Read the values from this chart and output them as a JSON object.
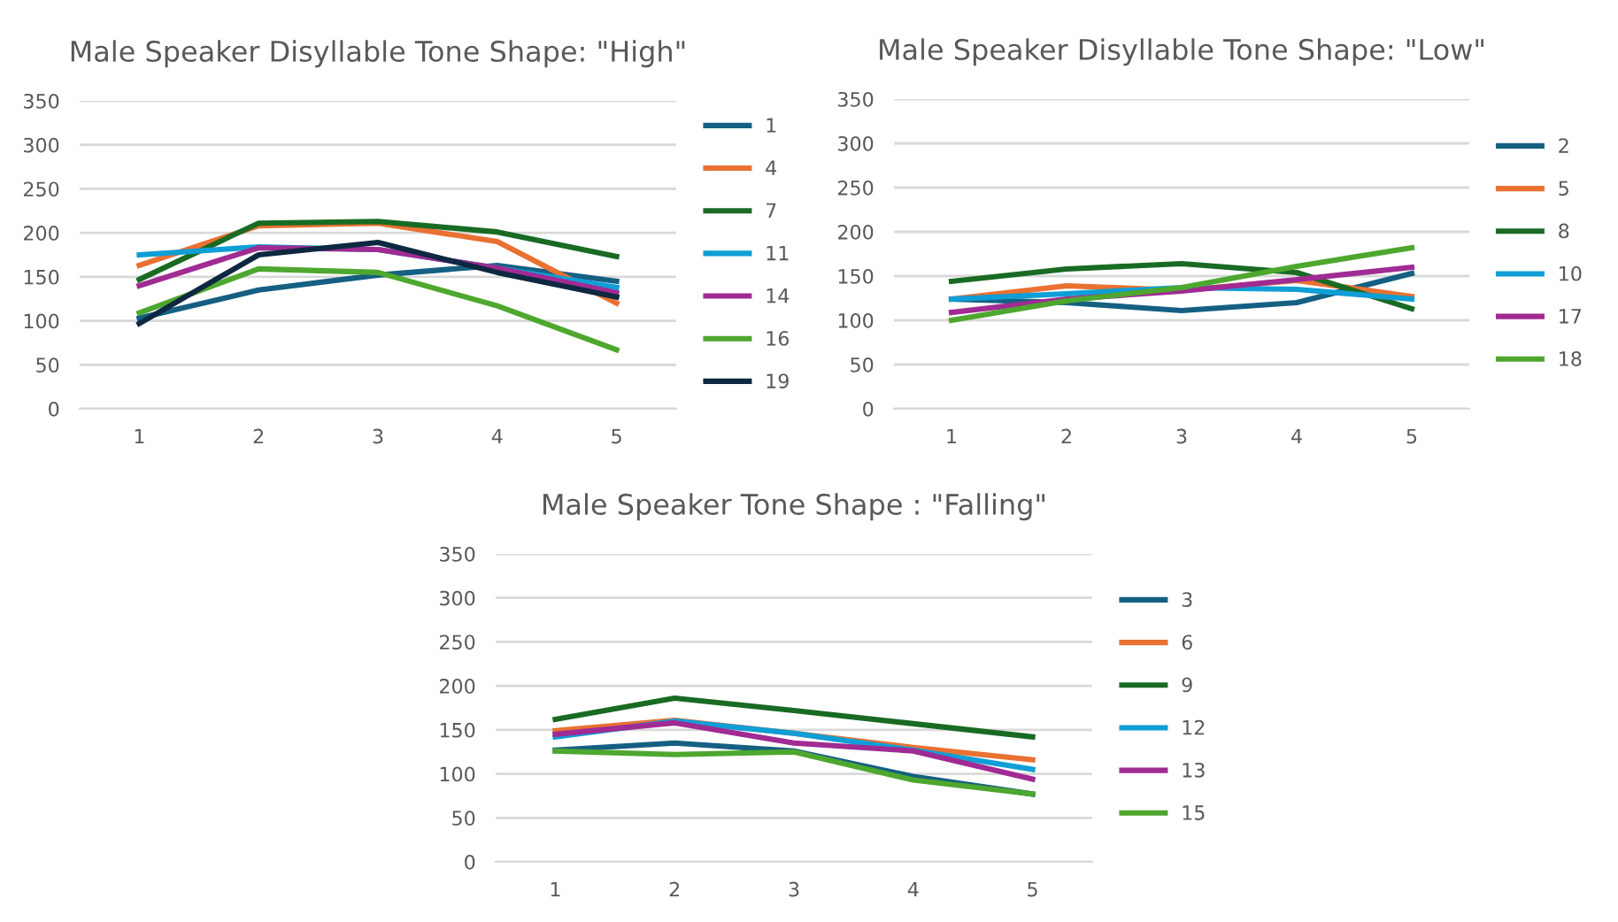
{
  "chart_data": [
    {
      "type": "line",
      "title": "Male Speaker Disyllable Tone Shape: \"High\"",
      "categories": [
        "1",
        "2",
        "3",
        "4",
        "5"
      ],
      "ylim": [
        0,
        350
      ],
      "yticks": [
        0,
        50,
        100,
        150,
        200,
        250,
        300,
        350
      ],
      "grid": "y",
      "legend": "right",
      "series": [
        {
          "name": "1",
          "color": "#156082",
          "values": [
            103,
            135,
            152,
            163,
            145
          ]
        },
        {
          "name": "4",
          "color": "#e97132",
          "values": [
            163,
            208,
            211,
            190,
            120
          ]
        },
        {
          "name": "7",
          "color": "#196b24",
          "values": [
            147,
            211,
            213,
            201,
            173
          ]
        },
        {
          "name": "11",
          "color": "#0f9ed5",
          "values": [
            175,
            184,
            181,
            160,
            138
          ]
        },
        {
          "name": "14",
          "color": "#a02b93",
          "values": [
            140,
            183,
            181,
            160,
            132
          ]
        },
        {
          "name": "16",
          "color": "#4ea72e",
          "values": [
            109,
            159,
            155,
            117,
            67
          ]
        },
        {
          "name": "19",
          "color": "#0e2841",
          "values": [
            97,
            175,
            189,
            155,
            127
          ]
        }
      ]
    },
    {
      "type": "line",
      "title": "Male Speaker Disyllable Tone Shape: \"Low\"",
      "categories": [
        "1",
        "2",
        "3",
        "4",
        "5"
      ],
      "ylim": [
        0,
        350
      ],
      "yticks": [
        0,
        50,
        100,
        150,
        200,
        250,
        300,
        350
      ],
      "grid": "y",
      "legend": "right",
      "series": [
        {
          "name": "2",
          "color": "#156082",
          "values": [
            124,
            120,
            111,
            120,
            153
          ]
        },
        {
          "name": "5",
          "color": "#e97132",
          "values": [
            124,
            139,
            134,
            145,
            127
          ]
        },
        {
          "name": "8",
          "color": "#196b24",
          "values": [
            144,
            158,
            164,
            154,
            113
          ]
        },
        {
          "name": "10",
          "color": "#0f9ed5",
          "values": [
            124,
            130,
            137,
            135,
            124
          ]
        },
        {
          "name": "17",
          "color": "#a02b93",
          "values": [
            109,
            124,
            133,
            146,
            160
          ]
        },
        {
          "name": "18",
          "color": "#4ea72e",
          "values": [
            100,
            122,
            137,
            161,
            182
          ]
        }
      ]
    },
    {
      "type": "line",
      "title": "Male Speaker Tone Shape : \"Falling\"",
      "categories": [
        "1",
        "2",
        "3",
        "4",
        "5"
      ],
      "ylim": [
        0,
        350
      ],
      "yticks": [
        0,
        50,
        100,
        150,
        200,
        250,
        300,
        350
      ],
      "grid": "y",
      "legend": "right",
      "series": [
        {
          "name": "3",
          "color": "#156082",
          "values": [
            127,
            135,
            126,
            97,
            77
          ]
        },
        {
          "name": "6",
          "color": "#e97132",
          "values": [
            149,
            161,
            146,
            130,
            116
          ]
        },
        {
          "name": "9",
          "color": "#196b24",
          "values": [
            162,
            186,
            172,
            157,
            142
          ]
        },
        {
          "name": "12",
          "color": "#0f9ed5",
          "values": [
            142,
            160,
            146,
            127,
            105
          ]
        },
        {
          "name": "13",
          "color": "#a02b93",
          "values": [
            145,
            158,
            135,
            126,
            94
          ]
        },
        {
          "name": "15",
          "color": "#4ea72e",
          "values": [
            126,
            122,
            125,
            93,
            77
          ]
        }
      ]
    }
  ]
}
